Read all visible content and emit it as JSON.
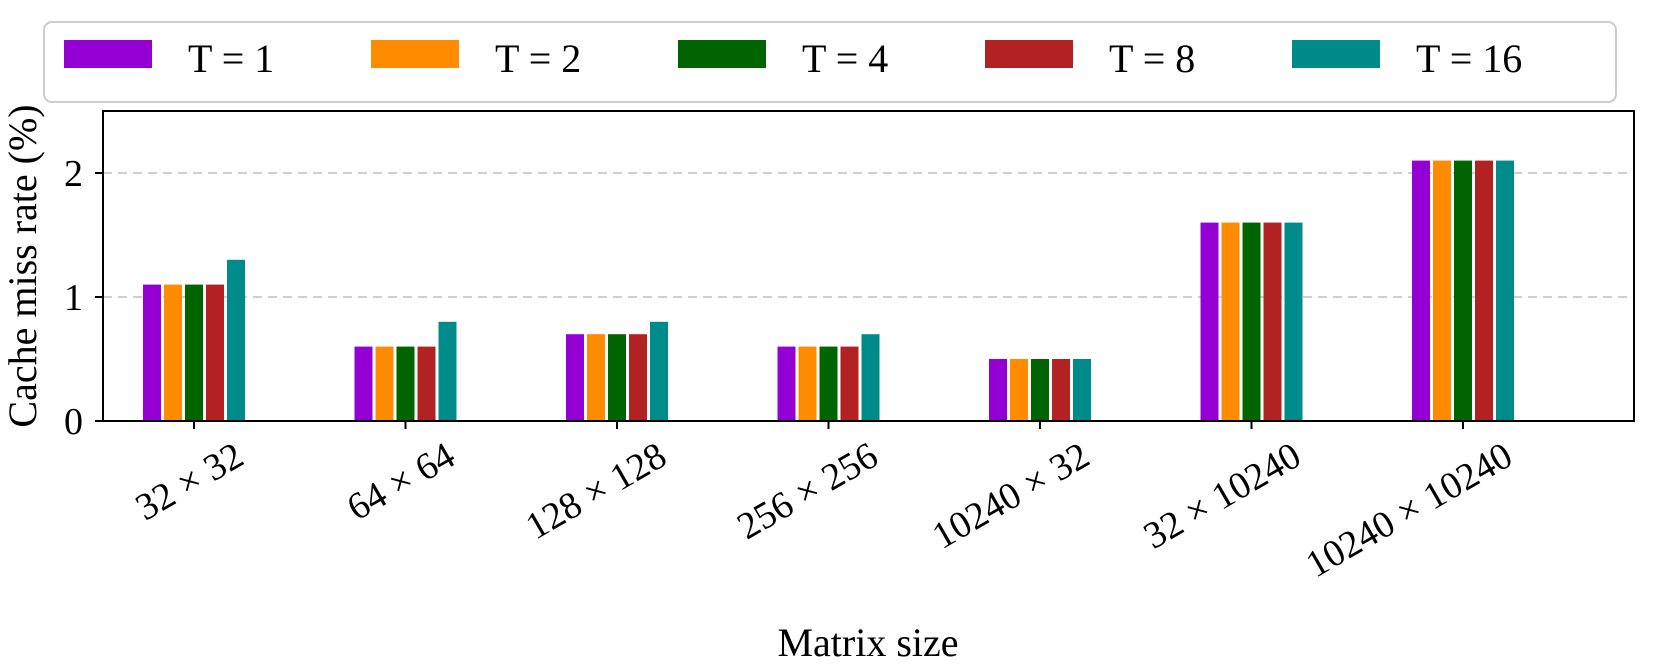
{
  "chart_data": {
    "type": "bar",
    "title": "",
    "xlabel": "Matrix size",
    "ylabel": "Cache miss rate (%)",
    "categories": [
      "32 × 32",
      "64 × 64",
      "128 × 128",
      "256 × 256",
      "10240 × 32",
      "32 × 10240",
      "10240 × 10240"
    ],
    "ylim": [
      0,
      2.5
    ],
    "yticks": [
      0,
      1,
      2
    ],
    "ytick_labels": [
      "0",
      "1",
      "2"
    ],
    "grid": true,
    "legend_position": "top",
    "series": [
      {
        "name": "T = 1",
        "color": "#9400d3",
        "values": [
          1.1,
          0.6,
          0.7,
          0.6,
          0.5,
          1.6,
          2.1
        ]
      },
      {
        "name": "T = 2",
        "color": "#ff8c00",
        "values": [
          1.1,
          0.6,
          0.7,
          0.6,
          0.5,
          1.6,
          2.1
        ]
      },
      {
        "name": "T = 4",
        "color": "#006400",
        "values": [
          1.1,
          0.6,
          0.7,
          0.6,
          0.5,
          1.6,
          2.1
        ]
      },
      {
        "name": "T = 8",
        "color": "#b22222",
        "values": [
          1.1,
          0.6,
          0.7,
          0.6,
          0.5,
          1.6,
          2.1
        ]
      },
      {
        "name": "T = 16",
        "color": "#008b8b",
        "values": [
          1.3,
          0.8,
          0.8,
          0.7,
          0.5,
          1.6,
          2.1
        ]
      }
    ]
  }
}
